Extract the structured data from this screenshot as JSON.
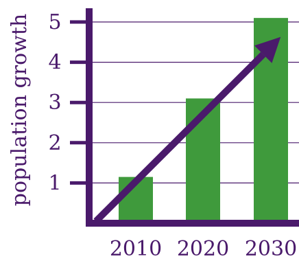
{
  "chart_data": {
    "type": "bar",
    "categories": [
      "2010",
      "2020",
      "2030"
    ],
    "values": [
      1.15,
      3.1,
      5.1
    ],
    "title": "",
    "xlabel": "",
    "ylabel": "population growth",
    "ylim": [
      0,
      5.5
    ],
    "y_ticks": [
      1,
      2,
      3,
      4,
      5
    ],
    "y_tick_labels": [
      "1",
      "2",
      "3",
      "4",
      "5"
    ],
    "grid": true,
    "trend_arrow": true,
    "colors": {
      "bar": "#3f9a3c",
      "axis": "#4a1a6b",
      "text": "#4a1a6b",
      "grid": "#4a1a6b"
    }
  }
}
